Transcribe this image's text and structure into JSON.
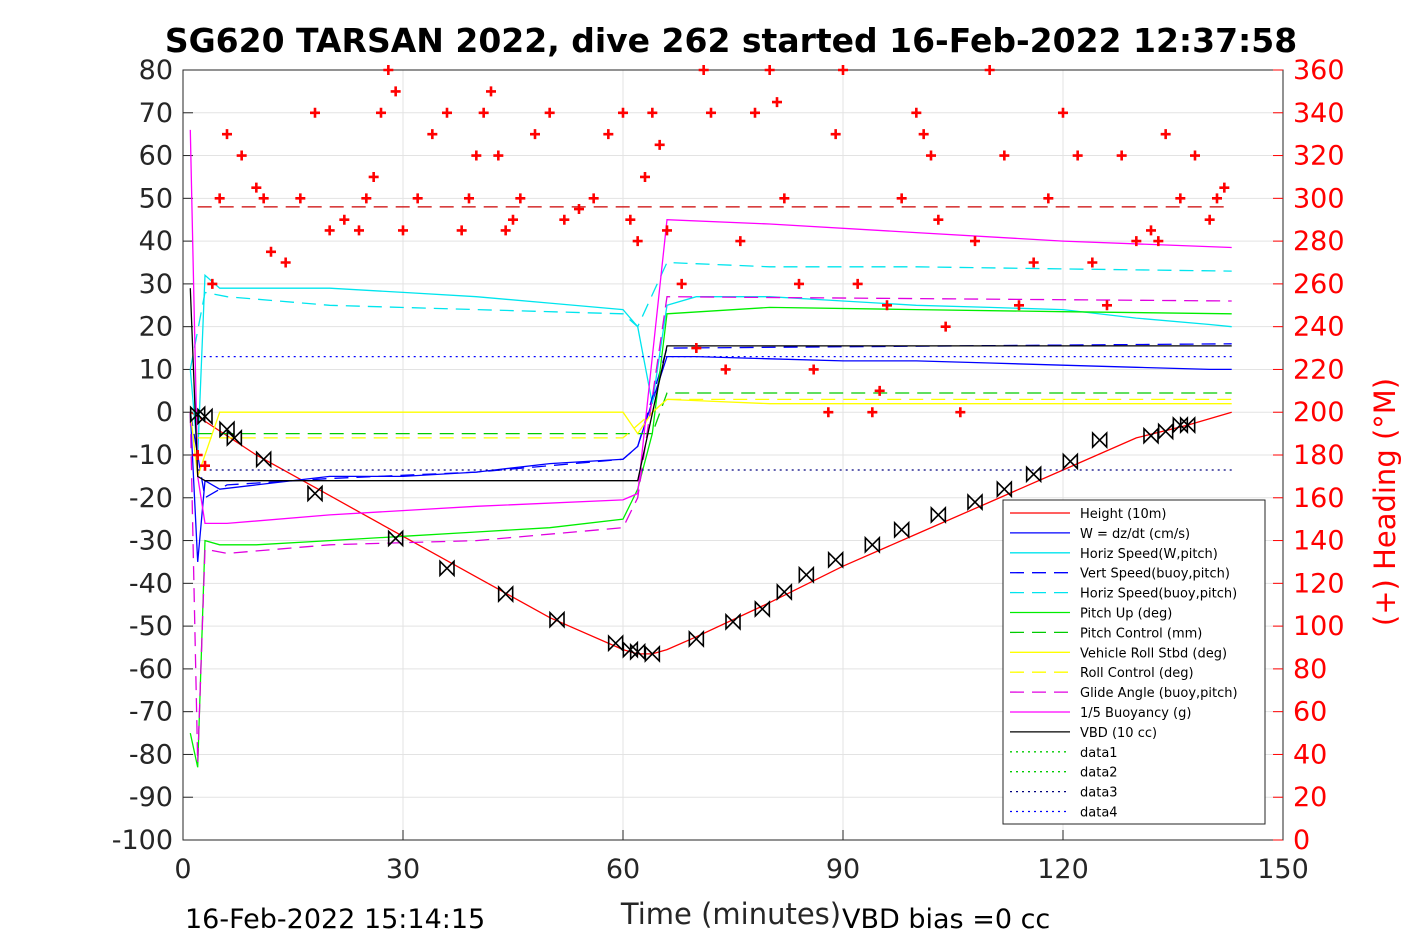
{
  "chart_data": {
    "type": "line",
    "title": "SG620 TARSAN 2022, dive 262 started 16-Feb-2022 12:37:58",
    "xlabel": "Time (minutes)",
    "ylabel_right": "(+) Heading (°M)",
    "xlim": [
      0,
      150
    ],
    "ylim_left": [
      -100,
      80
    ],
    "ylim_right": [
      0,
      360
    ],
    "xticks": [
      0,
      30,
      60,
      90,
      120,
      150
    ],
    "yticks_left": [
      -100,
      -90,
      -80,
      -70,
      -60,
      -50,
      -40,
      -30,
      -20,
      -10,
      0,
      10,
      20,
      30,
      40,
      50,
      60,
      70,
      80
    ],
    "yticks_right": [
      0,
      20,
      40,
      60,
      80,
      100,
      120,
      140,
      160,
      180,
      200,
      220,
      240,
      260,
      280,
      300,
      320,
      340,
      360
    ],
    "grid": true,
    "legend_position": "bottom-right",
    "footer_left": "16-Feb-2022 15:14:15",
    "footer_right": "VBD bias =0 cc",
    "series": [
      {
        "name": "Height (10m)",
        "color": "#ff0000",
        "style": "solid",
        "x": [
          1,
          2,
          10,
          20,
          30,
          40,
          50,
          60,
          62,
          64,
          66,
          70,
          80,
          90,
          100,
          110,
          120,
          130,
          137,
          143
        ],
        "y": [
          0,
          -1,
          -10,
          -19.5,
          -29,
          -38.5,
          -48,
          -55.5,
          -56.5,
          -56.5,
          -55.5,
          -52.5,
          -44.5,
          -36,
          -28.5,
          -21,
          -13.5,
          -6,
          -3,
          0
        ]
      },
      {
        "name": "W = dz/dt (cm/s)",
        "color": "#0000ff",
        "style": "solid",
        "x": [
          1,
          2,
          3,
          5,
          10,
          20,
          30,
          40,
          50,
          60,
          62,
          66,
          70,
          80,
          90,
          100,
          110,
          120,
          130,
          140,
          143
        ],
        "y": [
          0,
          -35,
          -16,
          -18,
          -17,
          -15,
          -15,
          -14,
          -12,
          -11,
          -8,
          13,
          13,
          12.5,
          12,
          12,
          11.5,
          11,
          10.5,
          10,
          10
        ]
      },
      {
        "name": "Horiz Speed(W,pitch)",
        "color": "#00e5ee",
        "style": "solid",
        "x": [
          1,
          2,
          3,
          5,
          10,
          20,
          30,
          40,
          50,
          60,
          62,
          64,
          66,
          70,
          80,
          90,
          100,
          110,
          120,
          130,
          140,
          143
        ],
        "y": [
          10,
          -10,
          32,
          29,
          29,
          29,
          28,
          27,
          25.5,
          24,
          20,
          2,
          25,
          27,
          27,
          26,
          25,
          24.5,
          24,
          22,
          20.5,
          20
        ]
      },
      {
        "name": "Vert Speed(buoy,pitch)",
        "color": "#0000ff",
        "style": "dashed",
        "x": [
          1,
          3,
          6,
          20,
          40,
          60,
          62,
          66,
          143
        ],
        "y": [
          0,
          -20,
          -17,
          -15.5,
          -14,
          -11,
          -8,
          15,
          16
        ]
      },
      {
        "name": "Horiz Speed(buoy,pitch)",
        "color": "#00e5ee",
        "style": "dashed",
        "x": [
          1,
          3,
          6,
          20,
          40,
          60,
          62,
          66,
          80,
          100,
          120,
          143
        ],
        "y": [
          10,
          28,
          27,
          25,
          24,
          23,
          20,
          35,
          34,
          34,
          33.5,
          33
        ]
      },
      {
        "name": "Pitch Up (deg)",
        "color": "#00ee00",
        "style": "solid",
        "x": [
          1,
          2,
          3,
          5,
          10,
          20,
          30,
          40,
          50,
          60,
          62,
          64,
          66,
          80,
          100,
          120,
          143
        ],
        "y": [
          -75,
          -83,
          -30,
          -31,
          -31,
          -30,
          -29,
          -28,
          -27,
          -25,
          -18,
          -5,
          23,
          24.5,
          24,
          23.5,
          23
        ]
      },
      {
        "name": "Pitch Control (mm)",
        "color": "#00cc00",
        "style": "dashed",
        "x": [
          2,
          5,
          60,
          64,
          66,
          143
        ],
        "y": [
          -5,
          -5,
          -5,
          -5,
          4.5,
          4.5
        ]
      },
      {
        "name": "Vehicle Roll Stbd (deg)",
        "color": "#ffff00",
        "style": "solid",
        "x": [
          1,
          2,
          3,
          5,
          10,
          20,
          30,
          40,
          50,
          60,
          62,
          64,
          66,
          80,
          100,
          120,
          143
        ],
        "y": [
          0,
          -15,
          -10,
          0,
          0,
          0,
          0,
          0,
          0,
          0,
          -5,
          0,
          3,
          2,
          2,
          2,
          2
        ]
      },
      {
        "name": "Roll Control (deg)",
        "color": "#ffff00",
        "style": "dashed",
        "x": [
          2,
          60,
          66,
          143
        ],
        "y": [
          -6,
          -6,
          3,
          3
        ]
      },
      {
        "name": "Glide Angle (buoy,pitch)",
        "color": "#e000e0",
        "style": "dashed",
        "x": [
          1,
          2,
          3,
          6,
          20,
          40,
          60,
          62,
          66,
          143
        ],
        "y": [
          0,
          -82,
          -32,
          -33,
          -31,
          -30,
          -27,
          -20,
          27,
          26
        ]
      },
      {
        "name": "1/5 Buoyancy (g)",
        "color": "#ff00ff",
        "style": "solid",
        "x": [
          1,
          2,
          3,
          6,
          20,
          40,
          60,
          62,
          66,
          80,
          100,
          120,
          143
        ],
        "y": [
          66,
          -15,
          -26,
          -26,
          -24,
          -22,
          -20.5,
          -19,
          45,
          44,
          42,
          40,
          38.5
        ]
      },
      {
        "name": "VBD (10 cc)",
        "color": "#000000",
        "style": "solid",
        "x": [
          1,
          2,
          3,
          62,
          66,
          143
        ],
        "y": [
          29,
          -15,
          -16,
          -16,
          15.5,
          15.5
        ]
      },
      {
        "name": "data1",
        "color": "#00cc00",
        "style": "dotted",
        "x": [],
        "y": []
      },
      {
        "name": "data2",
        "color": "#00cc00",
        "style": "dotted",
        "x": [],
        "y": []
      },
      {
        "name": "data3",
        "color": "#000080",
        "style": "dotted",
        "x": [
          2,
          143
        ],
        "y": [
          -13.5,
          -13.5
        ]
      },
      {
        "name": "data4",
        "color": "#0000ff",
        "style": "dotted",
        "x": [
          2,
          143
        ],
        "y": [
          13,
          13
        ]
      },
      {
        "name": "",
        "color": "#cc0000",
        "style": "dashed",
        "x": [
          2,
          143
        ],
        "y": [
          48,
          48
        ]
      }
    ],
    "heading_series": {
      "axis": "right",
      "color": "#ff0000",
      "marker": "+",
      "x": [
        2,
        3,
        4,
        5,
        6,
        8,
        10,
        11,
        12,
        14,
        16,
        18,
        20,
        22,
        24,
        25,
        26,
        27,
        28,
        29,
        30,
        32,
        34,
        36,
        38,
        39,
        40,
        41,
        42,
        43,
        44,
        45,
        46,
        48,
        50,
        52,
        54,
        56,
        58,
        60,
        61,
        62,
        63,
        64,
        65,
        66,
        68,
        70,
        71,
        72,
        74,
        76,
        78,
        80,
        81,
        82,
        84,
        86,
        88,
        89,
        90,
        92,
        94,
        95,
        96,
        98,
        100,
        101,
        102,
        103,
        104,
        106,
        108,
        110,
        112,
        114,
        116,
        118,
        120,
        122,
        124,
        126,
        128,
        130,
        132,
        133,
        134,
        136,
        138,
        140,
        141,
        142
      ],
      "y": [
        180,
        175,
        260,
        300,
        330,
        320,
        305,
        300,
        275,
        270,
        300,
        340,
        285,
        290,
        285,
        300,
        310,
        340,
        360,
        350,
        285,
        300,
        330,
        340,
        285,
        300,
        320,
        340,
        350,
        320,
        285,
        290,
        300,
        330,
        340,
        290,
        295,
        300,
        330,
        340,
        290,
        280,
        310,
        340,
        325,
        285,
        260,
        230,
        360,
        340,
        220,
        280,
        340,
        360,
        345,
        300,
        260,
        220,
        200,
        330,
        360,
        260,
        200,
        210,
        250,
        300,
        340,
        330,
        320,
        290,
        240,
        200,
        280,
        360,
        320,
        250,
        270,
        300,
        340,
        320,
        270,
        250,
        320,
        280,
        285,
        280,
        330,
        300,
        320,
        290,
        300,
        305
      ]
    },
    "height_markers": {
      "marker": "bowtie",
      "x": [
        2,
        3,
        6,
        7,
        11,
        18,
        29,
        36,
        44,
        51,
        59,
        61,
        62,
        64,
        70,
        75,
        79,
        82,
        85,
        89,
        94,
        98,
        103,
        108,
        112,
        116,
        121,
        125,
        132,
        134,
        136,
        137
      ],
      "y": [
        -0.5,
        -1,
        -4,
        -6,
        -11,
        -19,
        -29.5,
        -36.5,
        -42.5,
        -48.5,
        -54,
        -55.5,
        -56,
        -56.5,
        -53,
        -49,
        -46,
        -42,
        -38,
        -34.5,
        -31,
        -27.5,
        -24,
        -21,
        -18,
        -14.5,
        -11.5,
        -6.5,
        -5.5,
        -4.5,
        -3,
        -3
      ]
    }
  }
}
